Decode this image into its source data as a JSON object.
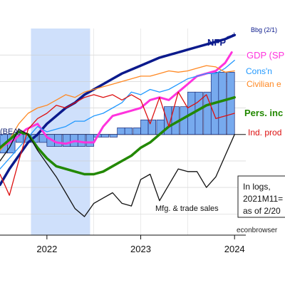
{
  "chart_data": {
    "type": "line",
    "x_tick_labels": [
      "2022",
      "2023",
      "2024"
    ],
    "note_lines": [
      "In logs,",
      "2021M11=",
      "as of 2/20"
    ],
    "source": "econbrowser",
    "label_bea": "(BEA)",
    "colors": {
      "nfp": "#0b1a8c",
      "gdp": "#ff33dd",
      "consn": "#2299ff",
      "civilian": "#ff8822",
      "pers_inc": "#228800",
      "ind_prod": "#dd1111",
      "mfg": "#111111",
      "bars_fill": "#77aaee",
      "bars_edge": "#1a2a77",
      "recession": "#cfe0fb"
    },
    "series": [
      {
        "name": "NFP",
        "key": "nfp",
        "label": "NFP",
        "x": [
          2021.5,
          2021.6,
          2021.7,
          2021.8,
          2021.9,
          2022.0,
          2022.1,
          2022.2,
          2022.3,
          2022.4,
          2022.5,
          2022.6,
          2022.7,
          2022.8,
          2022.9,
          2023.0,
          2023.1,
          2023.2,
          2023.3,
          2023.4,
          2023.5,
          2023.6,
          2023.7,
          2023.8,
          2023.9,
          2024.0
        ],
        "y": [
          -1.9,
          -1.3,
          -0.8,
          -0.3,
          0.0,
          0.4,
          0.7,
          1.0,
          1.2,
          1.5,
          1.7,
          1.9,
          2.1,
          2.3,
          2.45,
          2.6,
          2.75,
          2.9,
          3.0,
          3.1,
          3.2,
          3.3,
          3.4,
          3.5,
          3.6,
          3.75
        ]
      },
      {
        "name": "Bbg (2/1)",
        "key": "nfp",
        "label": "Bbg (2/1)",
        "x": [
          2023.92,
          2024.0
        ],
        "y": [
          3.68,
          3.78
        ]
      },
      {
        "name": "GDP (SPG",
        "key": "gdp",
        "label": "GDP (SPG",
        "x": [
          2021.5,
          2021.65,
          2021.78,
          2021.9,
          2022.0,
          2022.1,
          2022.2,
          2022.3,
          2022.4,
          2022.5,
          2022.6,
          2022.7,
          2022.8,
          2022.9,
          2023.0,
          2023.1,
          2023.2,
          2023.3,
          2023.4,
          2023.5,
          2023.6,
          2023.7,
          2023.8,
          2023.9,
          2023.97
        ],
        "y": [
          -0.5,
          -0.2,
          0.2,
          0.4,
          -0.1,
          -0.3,
          -0.35,
          -0.25,
          -0.3,
          -0.3,
          0.3,
          0.7,
          0.8,
          0.9,
          1.0,
          1.3,
          1.4,
          1.3,
          1.6,
          1.9,
          2.2,
          2.3,
          2.4,
          2.7,
          3.1
        ]
      },
      {
        "name": "Cons'n",
        "key": "consn",
        "label": "Cons'n",
        "x": [
          2021.5,
          2021.6,
          2021.7,
          2021.8,
          2021.9,
          2022.0,
          2022.1,
          2022.2,
          2022.3,
          2022.4,
          2022.5,
          2022.6,
          2022.7,
          2022.8,
          2022.9,
          2023.0,
          2023.1,
          2023.2,
          2023.3,
          2023.4,
          2023.5,
          2023.6,
          2023.7,
          2023.8,
          2023.9,
          2024.0
        ],
        "y": [
          -1.3,
          -0.9,
          -0.5,
          -0.1,
          0.3,
          0.1,
          0.2,
          0.3,
          0.5,
          0.5,
          0.7,
          0.8,
          1.0,
          1.2,
          1.6,
          1.5,
          1.7,
          1.6,
          1.7,
          1.9,
          2.1,
          2.2,
          2.3,
          2.3,
          2.5,
          2.8
        ]
      },
      {
        "name": "Civilian e",
        "key": "civilian",
        "label": "Civilian e",
        "x": [
          2021.5,
          2021.6,
          2021.7,
          2021.8,
          2021.9,
          2022.0,
          2022.1,
          2022.2,
          2022.3,
          2022.4,
          2022.5,
          2022.6,
          2022.7,
          2022.8,
          2022.9,
          2023.0,
          2023.1,
          2023.2,
          2023.3,
          2023.4,
          2023.5,
          2023.6,
          2023.7,
          2023.8,
          2023.9,
          2024.0
        ],
        "y": [
          -0.6,
          -0.2,
          0.4,
          0.8,
          1.0,
          1.1,
          1.3,
          1.5,
          1.4,
          1.6,
          1.7,
          1.8,
          1.9,
          2.0,
          2.1,
          2.2,
          2.2,
          2.3,
          2.4,
          2.35,
          2.4,
          2.5,
          2.6,
          2.55,
          2.35,
          2.4
        ]
      },
      {
        "name": "Pers. inc",
        "key": "pers_inc",
        "label": "Pers. inc",
        "x": [
          2021.5,
          2021.6,
          2021.7,
          2021.8,
          2021.9,
          2022.0,
          2022.1,
          2022.2,
          2022.3,
          2022.4,
          2022.5,
          2022.6,
          2022.7,
          2022.8,
          2022.9,
          2023.0,
          2023.1,
          2023.2,
          2023.3,
          2023.4,
          2023.5,
          2023.6,
          2023.7,
          2023.8,
          2023.9,
          2024.0
        ],
        "y": [
          -0.5,
          -0.2,
          0.1,
          0.0,
          -0.5,
          -0.9,
          -1.2,
          -1.3,
          -1.4,
          -1.5,
          -1.5,
          -1.4,
          -1.2,
          -1.0,
          -0.8,
          -0.5,
          -0.3,
          0.0,
          0.3,
          0.5,
          0.7,
          0.9,
          1.1,
          1.2,
          1.3,
          1.4
        ]
      },
      {
        "name": "Ind. prod",
        "key": "ind_prod",
        "label": "Ind. prod",
        "x": [
          2021.5,
          2021.6,
          2021.7,
          2021.8,
          2021.9,
          2022.0,
          2022.1,
          2022.2,
          2022.3,
          2022.4,
          2022.5,
          2022.6,
          2022.7,
          2022.8,
          2022.9,
          2023.0,
          2023.1,
          2023.2,
          2023.3,
          2023.4,
          2023.5,
          2023.6,
          2023.7,
          2023.8,
          2023.9,
          2024.0
        ],
        "y": [
          -1.5,
          -2.3,
          -1.0,
          0.2,
          0.6,
          0.8,
          1.1,
          1.0,
          1.2,
          1.4,
          1.5,
          1.4,
          1.5,
          1.3,
          1.5,
          1.3,
          0.4,
          1.4,
          0.3,
          1.6,
          1.0,
          1.2,
          1.5,
          0.6,
          0.7,
          0.8
        ]
      },
      {
        "name": "Mfg. & trade sales",
        "key": "mfg",
        "label": "Mfg. & trade sales",
        "x": [
          2021.5,
          2021.6,
          2021.7,
          2021.8,
          2021.9,
          2022.0,
          2022.1,
          2022.2,
          2022.3,
          2022.4,
          2022.5,
          2022.6,
          2022.7,
          2022.8,
          2022.9,
          2023.0,
          2023.1,
          2023.2,
          2023.3,
          2023.4,
          2023.5,
          2023.6,
          2023.7,
          2023.8,
          2023.9,
          2024.0
        ],
        "y": [
          -1.0,
          -0.5,
          0.2,
          0.0,
          -0.6,
          -1.1,
          -1.6,
          -2.2,
          -2.8,
          -3.1,
          -2.6,
          -2.4,
          -2.2,
          -2.6,
          -2.7,
          -1.7,
          -1.5,
          -2.5,
          -1.9,
          -1.3,
          -1.4,
          -1.4,
          -2.0,
          -1.6,
          -0.8,
          0.0
        ]
      }
    ],
    "bars": {
      "name": "GDP (BEA)",
      "label": "(BEA)",
      "x": [
        2021.5,
        2021.58,
        2021.67,
        2021.75,
        2021.83,
        2021.92,
        2022.0,
        2022.08,
        2022.17,
        2022.25,
        2022.33,
        2022.42,
        2022.5,
        2022.58,
        2022.67,
        2022.75,
        2022.83,
        2022.92,
        2023.0,
        2023.08,
        2023.17,
        2023.25,
        2023.33,
        2023.42,
        2023.5,
        2023.58,
        2023.67,
        2023.75,
        2023.83,
        2023.92
      ],
      "y": [
        -0.7,
        -0.7,
        -0.3,
        -0.3,
        -0.3,
        -0.3,
        -0.45,
        -0.45,
        -0.45,
        -0.45,
        -0.45,
        -0.45,
        -0.1,
        -0.1,
        -0.1,
        0.25,
        0.25,
        0.25,
        0.55,
        0.55,
        0.55,
        1.05,
        1.05,
        1.05,
        1.6,
        1.6,
        1.6,
        2.35,
        2.35,
        2.35
      ]
    },
    "recession_shading": [
      2021.83,
      2022.46
    ],
    "xlim": [
      2021.5,
      2024.12
    ],
    "ylim": [
      -3.8,
      4.0
    ],
    "grid": true,
    "legend": "inline labels at right end of lines"
  }
}
